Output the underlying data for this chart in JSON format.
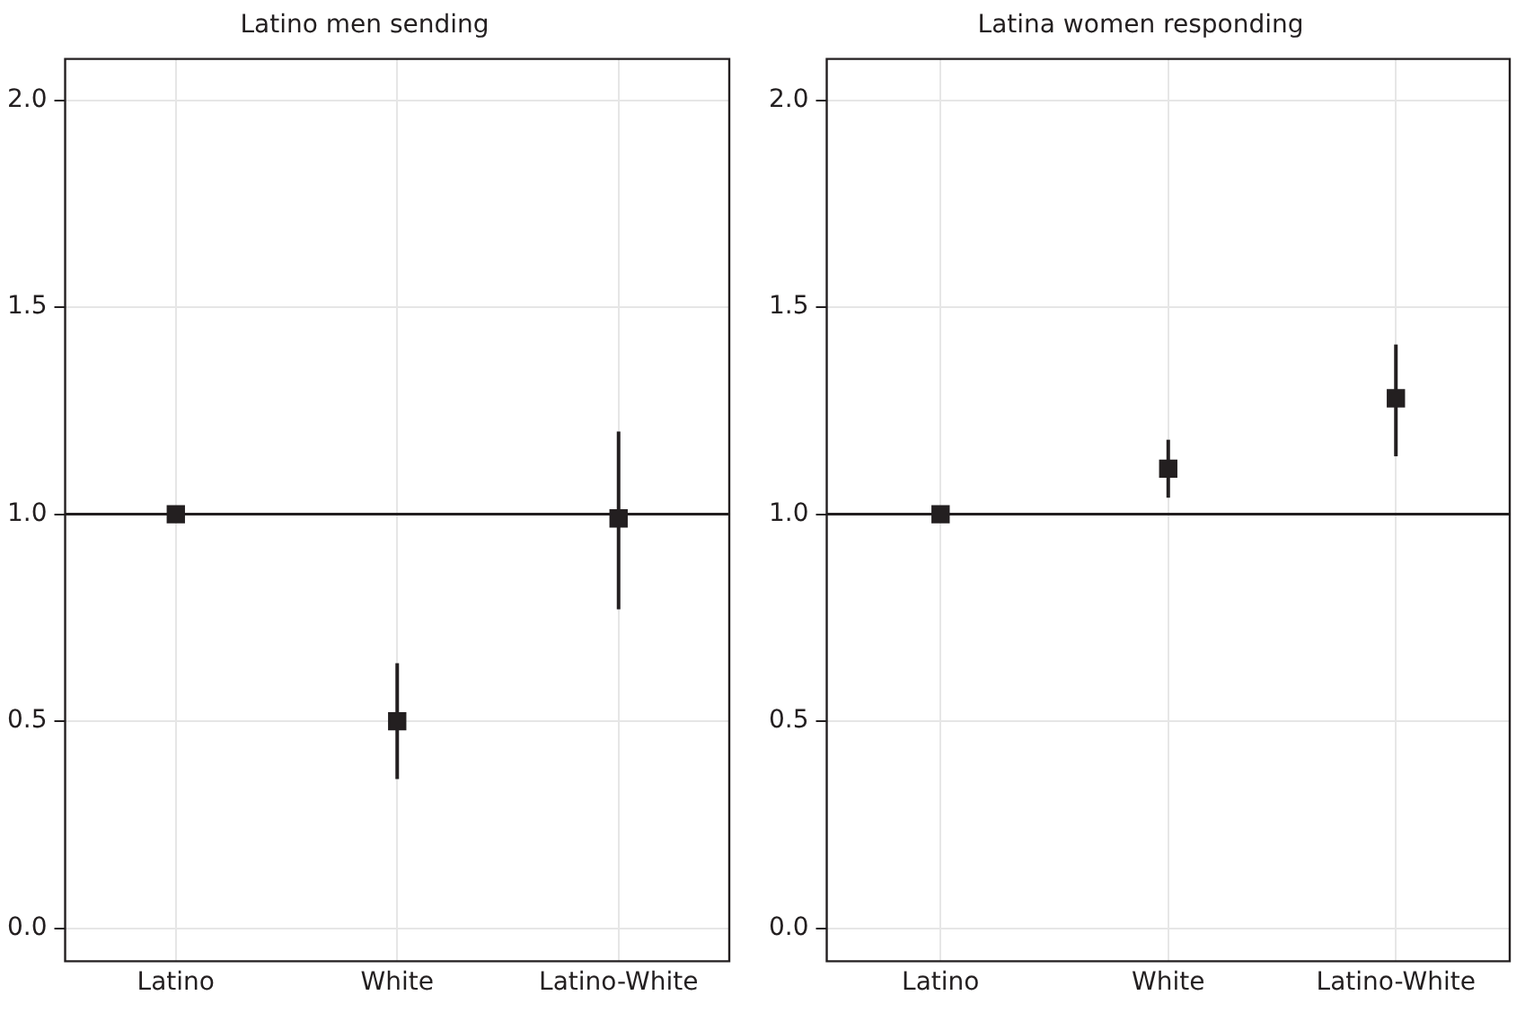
{
  "chart_data": [
    {
      "type": "scatter",
      "title": "Latino men sending",
      "categories": [
        "Latino",
        "White",
        "Latino-White"
      ],
      "series": [
        {
          "color": "#231f20",
          "values": [
            1.0,
            0.5,
            0.99
          ],
          "errors": [
            null,
            [
              0.36,
              0.64
            ],
            [
              0.77,
              1.2
            ]
          ]
        }
      ],
      "ylim": [
        -0.08,
        2.1
      ],
      "yticks": [
        {
          "value": 0,
          "label": "0.0"
        },
        {
          "value": 0.5,
          "label": "0.5"
        },
        {
          "value": 1,
          "label": "1.0"
        },
        {
          "value": 1.5,
          "label": "1.5"
        },
        {
          "value": 2,
          "label": "2.0"
        }
      ],
      "ref_lines": [
        {
          "axis": "y",
          "value": 1,
          "label": null,
          "color": "#231f20"
        }
      ],
      "grid": true,
      "marker": "square"
    },
    {
      "type": "scatter",
      "title": "Latina women responding",
      "categories": [
        "Latino",
        "White",
        "Latino-White"
      ],
      "series": [
        {
          "color": "#231f20",
          "values": [
            1.0,
            1.11,
            1.28
          ],
          "errors": [
            null,
            [
              1.04,
              1.18
            ],
            [
              1.14,
              1.41
            ]
          ]
        }
      ],
      "ylim": [
        -0.08,
        2.1
      ],
      "yticks": [
        {
          "value": 0,
          "label": "0.0"
        },
        {
          "value": 0.5,
          "label": "0.5"
        },
        {
          "value": 1,
          "label": "1.0"
        },
        {
          "value": 1.5,
          "label": "1.5"
        },
        {
          "value": 2,
          "label": "2.0"
        }
      ],
      "ref_lines": [
        {
          "axis": "y",
          "value": 1,
          "label": null,
          "color": "#231f20"
        }
      ],
      "grid": true,
      "marker": "square"
    }
  ]
}
